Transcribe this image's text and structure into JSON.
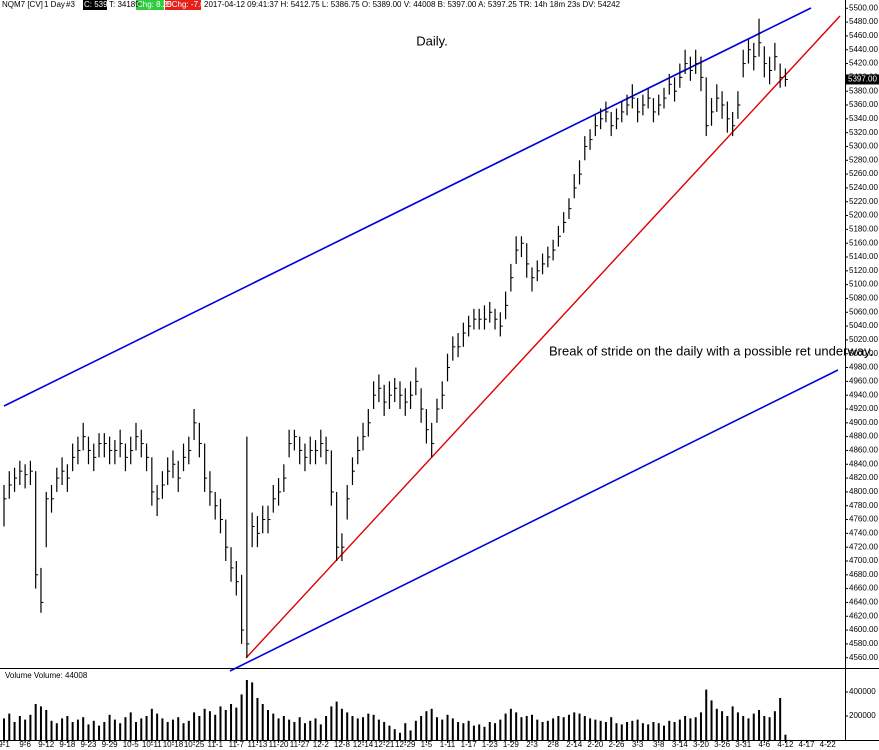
{
  "header": {
    "symbol": "NQM7 [CV]",
    "interval": "1 Day",
    "id": "#3",
    "close": "C: 5397.00",
    "ticks": "T: 34189",
    "chg": "Chg: 8.25",
    "dchg": "DChg: -7.00",
    "info": "2017-04-12 09:41:37 H: 5412.75 L: 5386.75 O: 5389.00 V: 44008 B: 5397.00 A: 5397.25 TR: 14h 18m 23s DV: 54242"
  },
  "chart_data": {
    "type": "ohlc",
    "title": "Daily.",
    "annotation": "Break of stride on the daily with a possible ret underway.",
    "volume_title": "Volume  Volume: 44008",
    "last_price": {
      "value": 5397,
      "label": "5397.00"
    },
    "ylim": [
      4548,
      5512
    ],
    "yticks": [
      {
        "value": 4560,
        "label": "4560.00"
      },
      {
        "value": 4580,
        "label": "4580.00"
      },
      {
        "value": 4600,
        "label": "4600.00"
      },
      {
        "value": 4620,
        "label": "4620.00"
      },
      {
        "value": 4640,
        "label": "4640.00"
      },
      {
        "value": 4660,
        "label": "4660.00"
      },
      {
        "value": 4680,
        "label": "4680.00"
      },
      {
        "value": 4700,
        "label": "4700.00"
      },
      {
        "value": 4720,
        "label": "4720.00"
      },
      {
        "value": 4740,
        "label": "4740.00"
      },
      {
        "value": 4760,
        "label": "4760.00"
      },
      {
        "value": 4780,
        "label": "4780.00"
      },
      {
        "value": 4800,
        "label": "4800.00"
      },
      {
        "value": 4820,
        "label": "4820.00"
      },
      {
        "value": 4840,
        "label": "4840.00"
      },
      {
        "value": 4860,
        "label": "4860.00"
      },
      {
        "value": 4880,
        "label": "4880.00"
      },
      {
        "value": 4900,
        "label": "4900.00"
      },
      {
        "value": 4920,
        "label": "4920.00"
      },
      {
        "value": 4940,
        "label": "4940.00"
      },
      {
        "value": 4960,
        "label": "4960.00"
      },
      {
        "value": 4980,
        "label": "4980.00"
      },
      {
        "value": 5000,
        "label": "5000.00"
      },
      {
        "value": 5020,
        "label": "5020.00"
      },
      {
        "value": 5040,
        "label": "5040.00"
      },
      {
        "value": 5060,
        "label": "5060.00"
      },
      {
        "value": 5080,
        "label": "5080.00"
      },
      {
        "value": 5100,
        "label": "5100.00"
      },
      {
        "value": 5120,
        "label": "5120.00"
      },
      {
        "value": 5140,
        "label": "5140.00"
      },
      {
        "value": 5160,
        "label": "5160.00"
      },
      {
        "value": 5180,
        "label": "5180.00"
      },
      {
        "value": 5200,
        "label": "5200.00"
      },
      {
        "value": 5220,
        "label": "5220.00"
      },
      {
        "value": 5240,
        "label": "5240.00"
      },
      {
        "value": 5260,
        "label": "5260.00"
      },
      {
        "value": 5280,
        "label": "5280.00"
      },
      {
        "value": 5300,
        "label": "5300.00"
      },
      {
        "value": 5320,
        "label": "5320.00"
      },
      {
        "value": 5340,
        "label": "5340.00"
      },
      {
        "value": 5360,
        "label": "5360.00"
      },
      {
        "value": 5380,
        "label": "5380.00"
      },
      {
        "value": 5400,
        "label": "5400.00"
      },
      {
        "value": 5420,
        "label": "5420.00"
      },
      {
        "value": 5440,
        "label": "5440.00"
      },
      {
        "value": 5460,
        "label": "5460.00"
      },
      {
        "value": 5480,
        "label": "5480.00"
      },
      {
        "value": 5500,
        "label": "5500.00"
      }
    ],
    "volume_ylim": [
      0,
      500000
    ],
    "volume_ticks": [
      200000,
      400000
    ],
    "color": "#000000",
    "categories": [
      "9-1",
      null,
      null,
      null,
      "9-6",
      null,
      null,
      null,
      "9-12",
      null,
      null,
      null,
      "9-18",
      null,
      null,
      null,
      "9-23",
      null,
      null,
      null,
      "9-29",
      null,
      null,
      null,
      "10-5",
      null,
      null,
      null,
      "10-11",
      null,
      null,
      null,
      "10-18",
      null,
      null,
      null,
      "10-25",
      null,
      null,
      null,
      "11-1",
      null,
      null,
      null,
      "11-7",
      null,
      null,
      null,
      "11-13",
      null,
      null,
      null,
      "11-20",
      null,
      null,
      null,
      "11-27",
      null,
      null,
      null,
      "12-2",
      null,
      null,
      null,
      "12-8",
      null,
      null,
      null,
      "12-14",
      null,
      null,
      null,
      "12-21",
      null,
      null,
      null,
      "12-29",
      null,
      null,
      null,
      "1-5",
      null,
      null,
      null,
      "1-11",
      null,
      null,
      null,
      "1-17",
      null,
      null,
      null,
      "1-23",
      null,
      null,
      null,
      "1-29",
      null,
      null,
      null,
      "2-3",
      null,
      null,
      null,
      "2-8",
      null,
      null,
      null,
      "2-14",
      null,
      null,
      null,
      "2-20",
      null,
      null,
      null,
      "2-26",
      null,
      null,
      null,
      "3-3",
      null,
      null,
      null,
      "3-8",
      null,
      null,
      null,
      "3-14",
      null,
      null,
      null,
      "3-20",
      null,
      null,
      null,
      "3-26",
      null,
      null,
      null,
      "3-31",
      null,
      null,
      null,
      "4-6",
      null,
      null,
      null,
      "4-12",
      null,
      null,
      null,
      "4-17",
      null,
      null,
      null,
      "4-22",
      null,
      null,
      null
    ],
    "high": [
      4810,
      4830,
      4835,
      4845,
      4840,
      4845,
      4830,
      4690,
      4800,
      4810,
      4835,
      4850,
      4840,
      4870,
      4880,
      4900,
      4880,
      4870,
      4885,
      4885,
      4880,
      4875,
      4890,
      4870,
      4880,
      4900,
      4890,
      4870,
      4850,
      4810,
      4830,
      4850,
      4860,
      4845,
      4870,
      4880,
      4920,
      4900,
      4870,
      4830,
      4800,
      4790,
      4760,
      4720,
      4700,
      4680,
      4880,
      4770,
      4765,
      4780,
      4780,
      4810,
      4820,
      4840,
      4890,
      4890,
      4880,
      4870,
      4880,
      4875,
      4890,
      4880,
      4860,
      4800,
      4740,
      4810,
      4850,
      4880,
      4900,
      4920,
      4960,
      4970,
      4955,
      4960,
      4965,
      4960,
      4950,
      4960,
      4980,
      4950,
      4920,
      4900,
      4935,
      4960,
      5000,
      5025,
      5030,
      5045,
      5055,
      5065,
      5065,
      5070,
      5075,
      5065,
      5060,
      5090,
      5130,
      5170,
      5170,
      5160,
      5125,
      5135,
      5145,
      5155,
      5165,
      5185,
      5205,
      5225,
      5260,
      5280,
      5315,
      5325,
      5345,
      5355,
      5365,
      5350,
      5355,
      5365,
      5375,
      5390,
      5370,
      5375,
      5385,
      5370,
      5375,
      5385,
      5405,
      5400,
      5420,
      5440,
      5430,
      5440,
      5430,
      5400,
      5370,
      5390,
      5380,
      5365,
      5350,
      5380,
      5440,
      5455,
      5450,
      5485,
      5445,
      5430,
      5450,
      5420,
      5412.75,
      null,
      null,
      null,
      null,
      null,
      null,
      null,
      null,
      null,
      null,
      null
    ],
    "low": [
      4750,
      4790,
      4800,
      4810,
      4805,
      4810,
      4660,
      4625,
      4720,
      4770,
      4800,
      4810,
      4800,
      4830,
      4840,
      4860,
      4840,
      4830,
      4850,
      4850,
      4840,
      4840,
      4850,
      4830,
      4840,
      4860,
      4850,
      4830,
      4780,
      4765,
      4790,
      4810,
      4820,
      4800,
      4830,
      4840,
      4875,
      4850,
      4800,
      4780,
      4760,
      4740,
      4700,
      4670,
      4650,
      4580,
      4560,
      4720,
      4720,
      4740,
      4740,
      4770,
      4780,
      4800,
      4850,
      4860,
      4840,
      4830,
      4840,
      4840,
      4850,
      4840,
      4780,
      4700,
      4700,
      4760,
      4810,
      4840,
      4860,
      4880,
      4920,
      4930,
      4910,
      4920,
      4930,
      4920,
      4910,
      4920,
      4940,
      4900,
      4870,
      4850,
      4900,
      4920,
      4960,
      4990,
      4995,
      5010,
      5025,
      5035,
      5035,
      5035,
      5045,
      5035,
      5025,
      5050,
      5090,
      5130,
      5140,
      5110,
      5090,
      5105,
      5115,
      5125,
      5135,
      5155,
      5175,
      5195,
      5225,
      5245,
      5280,
      5295,
      5315,
      5325,
      5335,
      5315,
      5325,
      5335,
      5345,
      5355,
      5335,
      5345,
      5355,
      5335,
      5345,
      5355,
      5375,
      5365,
      5385,
      5405,
      5395,
      5405,
      5380,
      5315,
      5330,
      5350,
      5340,
      5320,
      5315,
      5340,
      5400,
      5420,
      5410,
      5430,
      5400,
      5390,
      5410,
      5385,
      5386.75,
      null,
      null,
      null,
      null,
      null,
      null,
      null,
      null,
      null,
      null,
      null
    ],
    "close": [
      4790,
      4810,
      4820,
      4830,
      4825,
      4830,
      4680,
      4640,
      4790,
      4790,
      4820,
      4830,
      4820,
      4850,
      4860,
      4880,
      4860,
      4850,
      4870,
      4870,
      4860,
      4860,
      4870,
      4850,
      4860,
      4880,
      4870,
      4850,
      4800,
      4790,
      4810,
      4830,
      4840,
      4820,
      4850,
      4860,
      4900,
      4870,
      4820,
      4800,
      4780,
      4760,
      4720,
      4690,
      4670,
      4600,
      4580,
      4750,
      4740,
      4760,
      4760,
      4790,
      4800,
      4820,
      4870,
      4880,
      4860,
      4850,
      4860,
      4860,
      4870,
      4860,
      4800,
      4720,
      4720,
      4790,
      4830,
      4860,
      4880,
      4900,
      4940,
      4950,
      4930,
      4940,
      4950,
      4940,
      4930,
      4940,
      4960,
      4920,
      4890,
      4870,
      4920,
      4940,
      4980,
      5010,
      5010,
      5030,
      5040,
      5050,
      5050,
      5050,
      5060,
      5050,
      5040,
      5070,
      5110,
      5150,
      5160,
      5130,
      5110,
      5120,
      5130,
      5140,
      5150,
      5170,
      5190,
      5210,
      5240,
      5260,
      5300,
      5310,
      5330,
      5340,
      5350,
      5330,
      5340,
      5350,
      5360,
      5370,
      5350,
      5360,
      5370,
      5350,
      5360,
      5370,
      5390,
      5380,
      5400,
      5420,
      5410,
      5420,
      5400,
      5330,
      5350,
      5370,
      5360,
      5340,
      5330,
      5360,
      5420,
      5440,
      5430,
      5450,
      5420,
      5410,
      5430,
      5400,
      5397,
      null,
      null,
      null,
      null,
      null,
      null,
      null,
      null,
      null,
      null,
      null
    ],
    "volume": [
      180000,
      220000,
      150000,
      200000,
      170000,
      210000,
      300000,
      280000,
      250000,
      160000,
      140000,
      180000,
      200000,
      150000,
      170000,
      190000,
      130000,
      160000,
      120000,
      150000,
      210000,
      170000,
      140000,
      190000,
      230000,
      150000,
      180000,
      200000,
      260000,
      220000,
      180000,
      150000,
      170000,
      190000,
      140000,
      160000,
      230000,
      200000,
      260000,
      240000,
      210000,
      280000,
      250000,
      300000,
      270000,
      380000,
      500000,
      480000,
      350000,
      300000,
      250000,
      220000,
      180000,
      200000,
      170000,
      150000,
      190000,
      140000,
      160000,
      180000,
      130000,
      200000,
      280000,
      320000,
      260000,
      230000,
      200000,
      180000,
      190000,
      220000,
      210000,
      170000,
      150000,
      120000,
      90000,
      60000,
      140000,
      80000,
      160000,
      200000,
      240000,
      260000,
      190000,
      170000,
      210000,
      180000,
      150000,
      140000,
      160000,
      120000,
      130000,
      110000,
      150000,
      140000,
      170000,
      220000,
      260000,
      230000,
      190000,
      200000,
      210000,
      170000,
      150000,
      160000,
      180000,
      200000,
      190000,
      210000,
      230000,
      220000,
      200000,
      180000,
      170000,
      160000,
      150000,
      190000,
      140000,
      130000,
      150000,
      160000,
      170000,
      140000,
      130000,
      150000,
      140000,
      120000,
      160000,
      150000,
      170000,
      200000,
      180000,
      190000,
      230000,
      420000,
      330000,
      260000,
      240000,
      200000,
      280000,
      230000,
      200000,
      180000,
      220000,
      250000,
      200000,
      190000,
      240000,
      350000,
      44008,
      null,
      null,
      null,
      null,
      null,
      null,
      null,
      null,
      null,
      null,
      null
    ]
  }
}
